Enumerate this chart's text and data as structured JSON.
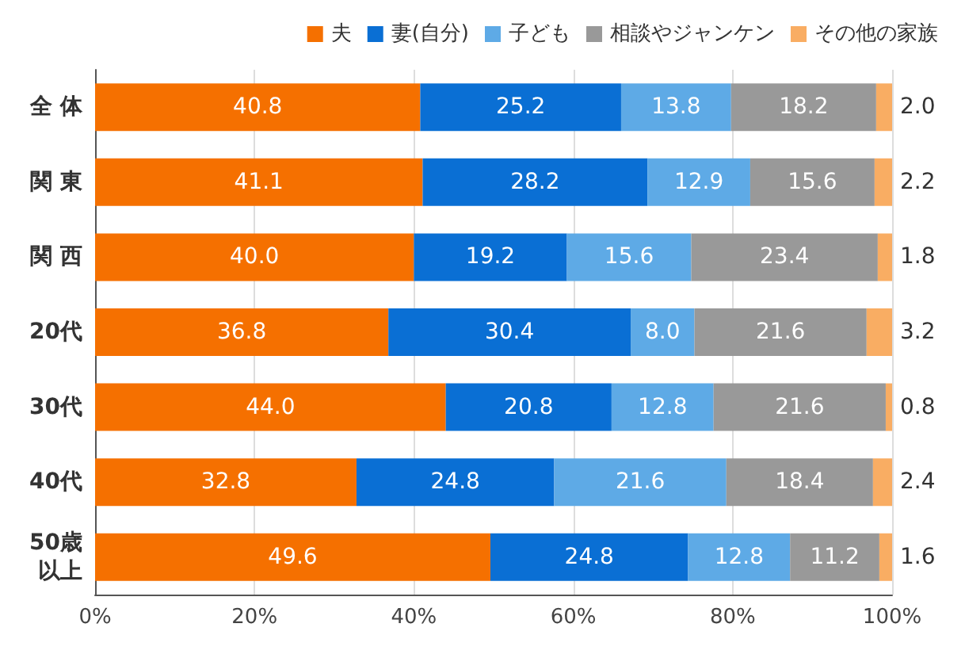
{
  "chart_data": {
    "type": "bar",
    "orientation": "horizontal",
    "stacked": true,
    "grid": "x",
    "legend": "top right",
    "categories": [
      "全 体",
      "関 東",
      "関 西",
      "20代",
      "30代",
      "40代",
      "50歳以上"
    ],
    "series": [
      {
        "name": "夫",
        "color": "#f57000",
        "values": [
          40.8,
          41.1,
          40.0,
          36.8,
          44.0,
          32.8,
          49.6
        ],
        "value_labels": [
          "40.8",
          "41.1",
          "40.0",
          "36.8",
          "44.0",
          "32.8",
          "49.6"
        ]
      },
      {
        "name": "妻(自分)",
        "color": "#0a6fd4",
        "values": [
          25.2,
          28.2,
          19.2,
          30.4,
          20.8,
          24.8,
          24.8
        ],
        "value_labels": [
          "25.2",
          "28.2",
          "19.2",
          "30.4",
          "20.8",
          "24.8",
          "24.8"
        ]
      },
      {
        "name": "子ども",
        "color": "#5eaae6",
        "values": [
          13.8,
          12.9,
          15.6,
          8.0,
          12.8,
          21.6,
          12.8
        ],
        "value_labels": [
          "13.8",
          "12.9",
          "15.6",
          "8.0",
          "12.8",
          "21.6",
          "12.8"
        ]
      },
      {
        "name": "相談やジャンケン",
        "color": "#999999",
        "values": [
          18.2,
          15.6,
          23.4,
          21.6,
          21.6,
          18.4,
          11.2
        ],
        "value_labels": [
          "18.2",
          "15.6",
          "23.4",
          "21.6",
          "21.6",
          "18.4",
          "11.2"
        ]
      },
      {
        "name": "その他の家族",
        "color": "#f9ad63",
        "values": [
          2.0,
          2.2,
          1.8,
          3.2,
          0.8,
          2.4,
          1.6
        ],
        "value_labels": [
          "2.0",
          "2.2",
          "1.8",
          "3.2",
          "0.8",
          "2.4",
          "1.6"
        ]
      }
    ],
    "xlim": [
      0,
      100
    ],
    "xticks": [
      {
        "value": 0,
        "label": "0%"
      },
      {
        "value": 20,
        "label": "20%"
      },
      {
        "value": 40,
        "label": "40%"
      },
      {
        "value": 60,
        "label": "60%"
      },
      {
        "value": 80,
        "label": "80%"
      },
      {
        "value": 100,
        "label": "100%"
      }
    ]
  }
}
